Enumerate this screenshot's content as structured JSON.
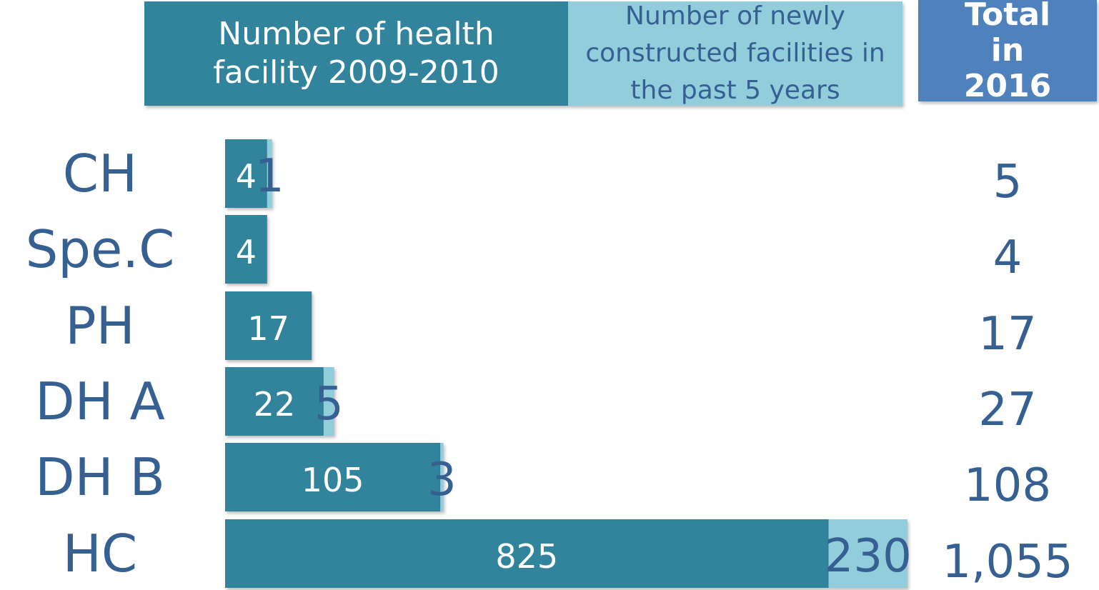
{
  "chart_data": {
    "type": "bar",
    "stacked": true,
    "xscale": "sqrt",
    "xlim": [
      0,
      1055
    ],
    "categories": [
      "CH",
      "Spe.C",
      "PH",
      "DH A",
      "DH B",
      "HC"
    ],
    "series": [
      {
        "name": "Number of health facility 2009-2010",
        "color": "#31849b",
        "values": [
          4,
          4,
          17,
          22,
          105,
          825
        ]
      },
      {
        "name": "Number of newly constructed facilities in the past 5 years",
        "color": "#92cddc",
        "values": [
          1,
          null,
          null,
          5,
          3,
          230
        ]
      }
    ],
    "totals": {
      "name": "Total in 2016",
      "color": "#4f81bd",
      "values": [
        5,
        4,
        17,
        27,
        108,
        1055
      ],
      "value_labels": [
        "5",
        "4",
        "17",
        "27",
        "108",
        "1,055"
      ]
    }
  }
}
